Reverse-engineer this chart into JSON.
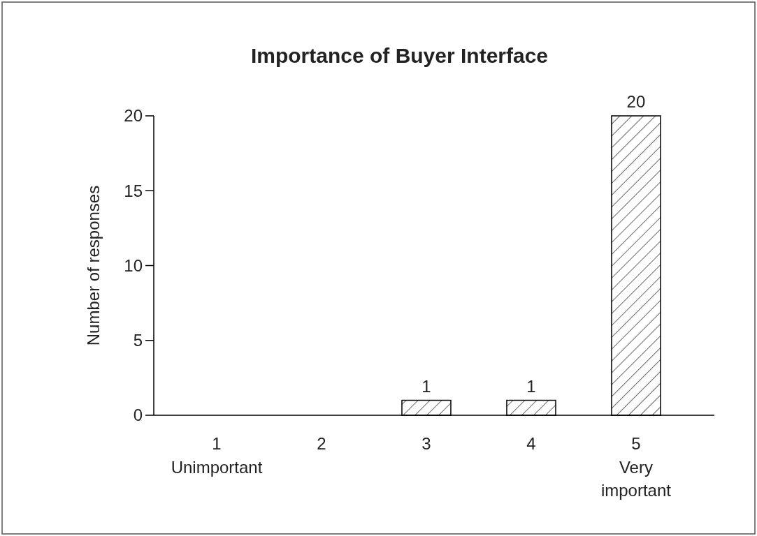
{
  "chart_data": {
    "type": "bar",
    "title": "Importance of Buyer Interface",
    "ylabel": "Number of responses",
    "categories": [
      "1\nUnimportant",
      "2",
      "3",
      "4",
      "5\nVery\nimportant"
    ],
    "values": [
      0,
      0,
      1,
      1,
      20
    ],
    "color": "#ffffff",
    "value_labels": [
      null,
      null,
      "1",
      "1",
      "20"
    ],
    "ylim": [
      0,
      20
    ],
    "yticks": [
      0,
      5,
      10,
      15,
      20
    ]
  }
}
